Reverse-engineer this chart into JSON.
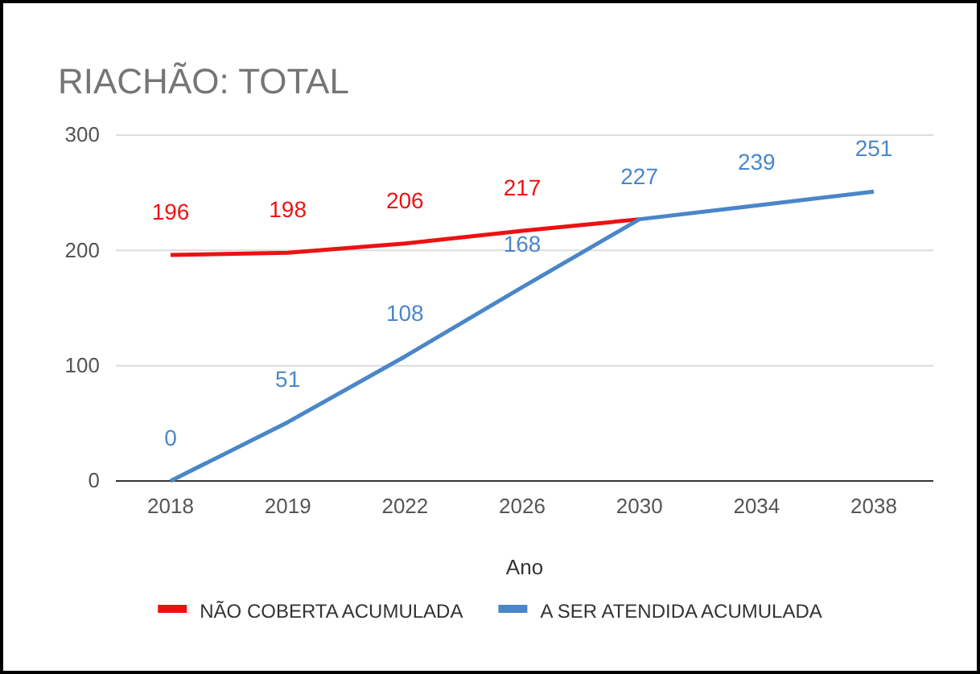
{
  "chart_data": {
    "type": "line",
    "title": "RIACHÃO: TOTAL",
    "xlabel": "Ano",
    "categories": [
      "2018",
      "2019",
      "2022",
      "2026",
      "2030",
      "2034",
      "2038"
    ],
    "series": [
      {
        "name": "NÃO COBERTA ACUMULADA",
        "color": "#ee1111",
        "values": [
          196,
          198,
          206,
          217,
          227,
          null,
          null
        ],
        "value_labels": [
          "196",
          "198",
          "206",
          "217",
          null,
          null,
          null
        ]
      },
      {
        "name": "A SER ATENDIDA ACUMULADA",
        "color": "#4a86c8",
        "values": [
          0,
          51,
          108,
          168,
          227,
          239,
          251
        ],
        "value_labels": [
          "0",
          "51",
          "108",
          "168",
          "227",
          "239",
          "251"
        ]
      }
    ],
    "ylim": [
      0,
      300
    ],
    "yticks": [
      0,
      100,
      200,
      300
    ],
    "grid": "y",
    "legend": "bottom",
    "marker": "none",
    "line_style": "solid"
  }
}
